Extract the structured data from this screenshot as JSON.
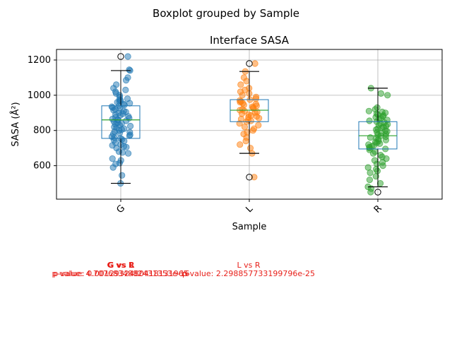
{
  "figure": {
    "suptitle": "Boxplot grouped by Sample"
  },
  "chart_data": {
    "type": "box",
    "title": "Interface SASA",
    "xlabel": "Sample",
    "ylabel": "SASA (Å²)",
    "categories": [
      "G",
      "L",
      "R"
    ],
    "ylim": [
      410,
      1260
    ],
    "yticks": [
      600,
      800,
      1000,
      1200
    ],
    "grid": true,
    "box_stats": [
      {
        "name": "G",
        "whisker_low": 500,
        "q1": 755,
        "median": 860,
        "q3": 940,
        "whisker_high": 1140,
        "fliers": [
          1220
        ],
        "color": "#1f77b4"
      },
      {
        "name": "L",
        "whisker_low": 670,
        "q1": 850,
        "median": 915,
        "q3": 975,
        "whisker_high": 1135,
        "fliers": [
          535,
          1180
        ],
        "color": "#ff7f0e"
      },
      {
        "name": "R",
        "whisker_low": 480,
        "q1": 695,
        "median": 770,
        "q3": 850,
        "whisker_high": 1040,
        "fliers": [
          450
        ],
        "color": "#2ca02c"
      }
    ],
    "points": [
      {
        "name": "G",
        "values": [
          500,
          545,
          590,
          610,
          615,
          630,
          640,
          670,
          675,
          680,
          700,
          705,
          710,
          715,
          720,
          730,
          740,
          745,
          750,
          755,
          760,
          765,
          770,
          775,
          780,
          785,
          790,
          795,
          800,
          805,
          810,
          815,
          820,
          825,
          830,
          835,
          840,
          845,
          850,
          855,
          860,
          862,
          865,
          870,
          875,
          880,
          885,
          890,
          895,
          900,
          905,
          910,
          915,
          920,
          925,
          930,
          935,
          940,
          945,
          950,
          955,
          960,
          965,
          970,
          975,
          980,
          990,
          1000,
          1010,
          1020,
          1030,
          1040,
          1060,
          1085,
          1100,
          1140,
          1145,
          1220
        ]
      },
      {
        "name": "L",
        "values": [
          535,
          670,
          700,
          720,
          740,
          760,
          780,
          790,
          800,
          810,
          820,
          830,
          840,
          850,
          855,
          860,
          865,
          870,
          875,
          880,
          885,
          890,
          895,
          900,
          905,
          910,
          915,
          920,
          925,
          930,
          935,
          940,
          945,
          950,
          955,
          960,
          965,
          970,
          975,
          980,
          990,
          1000,
          1010,
          1020,
          1030,
          1040,
          1060,
          1080,
          1100,
          1135,
          1180
        ]
      },
      {
        "name": "R",
        "values": [
          450,
          470,
          480,
          500,
          520,
          540,
          560,
          570,
          580,
          590,
          600,
          610,
          620,
          630,
          640,
          650,
          660,
          670,
          680,
          690,
          695,
          700,
          705,
          710,
          715,
          720,
          725,
          730,
          735,
          740,
          745,
          750,
          755,
          760,
          765,
          770,
          775,
          780,
          785,
          790,
          795,
          800,
          805,
          810,
          815,
          820,
          825,
          830,
          835,
          840,
          845,
          850,
          855,
          860,
          865,
          870,
          875,
          880,
          885,
          890,
          895,
          900,
          905,
          910,
          920,
          930,
          1000,
          1010,
          1040
        ]
      }
    ]
  },
  "annotations": {
    "overlap_labels": [
      "G vs R",
      "G vs L"
    ],
    "overlap_pvalues": [
      "p-value: 4.7076834882431353e-16",
      "p-value: 0.0012932480418131965"
    ],
    "lr_label": "L vs R",
    "lr_pvalue": "p-value: 2.298857733199796e-25",
    "color": "#e8211b"
  }
}
